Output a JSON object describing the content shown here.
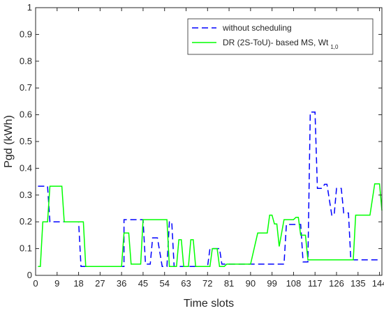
{
  "chart_data": {
    "type": "line",
    "xlabel": "Time slots",
    "ylabel": "Pgd (kWh)",
    "xlim": [
      0,
      145
    ],
    "ylim": [
      0,
      1
    ],
    "x_ticks": [
      0,
      9,
      18,
      27,
      36,
      45,
      54,
      63,
      72,
      81,
      90,
      99,
      108,
      117,
      126,
      135,
      144
    ],
    "y_ticks": [
      0,
      0.1,
      0.2,
      0.3,
      0.4,
      0.5,
      0.6,
      0.7,
      0.8,
      0.9,
      1
    ],
    "grid": false,
    "legend_position": "top-right",
    "series": [
      {
        "name": "without scheduling",
        "name_subscript": "",
        "color": "#0000ff",
        "dash": true,
        "points": [
          [
            1,
            0.333
          ],
          [
            5,
            0.333
          ],
          [
            6,
            0.2
          ],
          [
            18,
            0.2
          ],
          [
            19,
            0.033
          ],
          [
            37,
            0.033
          ],
          [
            37,
            0.208
          ],
          [
            45,
            0.208
          ],
          [
            46,
            0.042
          ],
          [
            48,
            0.042
          ],
          [
            49,
            0.14
          ],
          [
            51,
            0.14
          ],
          [
            53,
            0.033
          ],
          [
            55,
            0.033
          ],
          [
            56,
            0.2
          ],
          [
            57,
            0.2
          ],
          [
            58,
            0.033
          ],
          [
            72,
            0.033
          ],
          [
            73,
            0.1
          ],
          [
            77,
            0.1
          ],
          [
            78,
            0.042
          ],
          [
            82,
            0.042
          ],
          [
            83,
            0.042
          ],
          [
            92,
            0.042
          ],
          [
            99,
            0.042
          ],
          [
            104,
            0.042
          ],
          [
            105,
            0.19
          ],
          [
            111,
            0.19
          ],
          [
            112,
            0.05
          ],
          [
            114,
            0.05
          ],
          [
            115,
            0.61
          ],
          [
            117,
            0.61
          ],
          [
            118,
            0.325
          ],
          [
            120,
            0.325
          ],
          [
            121,
            0.34
          ],
          [
            122,
            0.34
          ],
          [
            124,
            0.225
          ],
          [
            125,
            0.225
          ],
          [
            126,
            0.325
          ],
          [
            128,
            0.325
          ],
          [
            129,
            0.233
          ],
          [
            131,
            0.233
          ],
          [
            132,
            0.058
          ],
          [
            135,
            0.058
          ],
          [
            144,
            0.058
          ]
        ]
      },
      {
        "name": "DR (2S-ToU)- based MS, Wt",
        "name_subscript": "1,0",
        "color": "#00ff00",
        "dash": false,
        "points": [
          [
            1,
            0.033
          ],
          [
            2,
            0.033
          ],
          [
            3,
            0.2
          ],
          [
            5,
            0.2
          ],
          [
            6,
            0.333
          ],
          [
            11,
            0.333
          ],
          [
            12,
            0.2
          ],
          [
            20,
            0.2
          ],
          [
            21,
            0.033
          ],
          [
            36,
            0.033
          ],
          [
            37,
            0.158
          ],
          [
            39,
            0.158
          ],
          [
            40,
            0.042
          ],
          [
            44,
            0.042
          ],
          [
            45,
            0.208
          ],
          [
            55,
            0.208
          ],
          [
            56,
            0.033
          ],
          [
            59,
            0.033
          ],
          [
            60,
            0.133
          ],
          [
            61,
            0.133
          ],
          [
            62,
            0.033
          ],
          [
            64,
            0.033
          ],
          [
            65,
            0.133
          ],
          [
            66,
            0.133
          ],
          [
            67,
            0.033
          ],
          [
            73,
            0.033
          ],
          [
            74,
            0.1
          ],
          [
            76,
            0.1
          ],
          [
            77,
            0.033
          ],
          [
            79,
            0.033
          ],
          [
            80,
            0.042
          ],
          [
            90,
            0.042
          ],
          [
            93,
            0.158
          ],
          [
            97,
            0.158
          ],
          [
            98,
            0.225
          ],
          [
            99,
            0.225
          ],
          [
            100,
            0.192
          ],
          [
            101,
            0.192
          ],
          [
            102,
            0.108
          ],
          [
            104,
            0.208
          ],
          [
            108,
            0.208
          ],
          [
            109,
            0.217
          ],
          [
            110,
            0.217
          ],
          [
            111,
            0.15
          ],
          [
            113,
            0.15
          ],
          [
            114,
            0.058
          ],
          [
            133,
            0.058
          ],
          [
            134,
            0.225
          ],
          [
            140,
            0.225
          ],
          [
            142,
            0.342
          ],
          [
            144,
            0.342
          ],
          [
            145,
            0.242
          ]
        ]
      }
    ]
  }
}
